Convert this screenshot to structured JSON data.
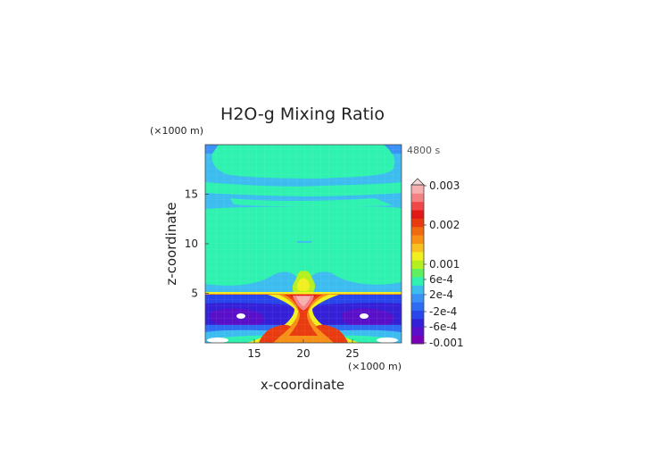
{
  "chart_data": {
    "type": "heatmap",
    "title": "H2O-g Mixing Ratio",
    "time_label": "4800 s",
    "xlabel": "x-coordinate",
    "ylabel": "z-coordinate",
    "x_unit": "(×1000 m)",
    "y_unit": "(×1000 m)",
    "x_ticks": [
      "15",
      "20",
      "25"
    ],
    "y_ticks": [
      "5",
      "10",
      "15"
    ],
    "xlim": [
      10,
      30
    ],
    "ylim": [
      0,
      20
    ],
    "grid": false,
    "colorbar": {
      "levels": [
        "0.003",
        "0.002",
        "0.001",
        "6e-4",
        "2e-4",
        "-2e-4",
        "-6e-4",
        "-0.001"
      ],
      "level_values": [
        0.003,
        0.002,
        0.001,
        0.0006,
        0.0002,
        -0.0002,
        -0.0006,
        -0.001
      ],
      "colors": [
        "#7a00b8",
        "#5a10c8",
        "#3420d6",
        "#2846ea",
        "#2f6cf4",
        "#3a92f6",
        "#3dbcf0",
        "#2ff2b0",
        "#5ff060",
        "#b4f020",
        "#f0f020",
        "#f8c020",
        "#f89018",
        "#f06a10",
        "#e83c10",
        "#e01818",
        "#f04848",
        "#f48282",
        "#f6b0b0"
      ]
    }
  }
}
